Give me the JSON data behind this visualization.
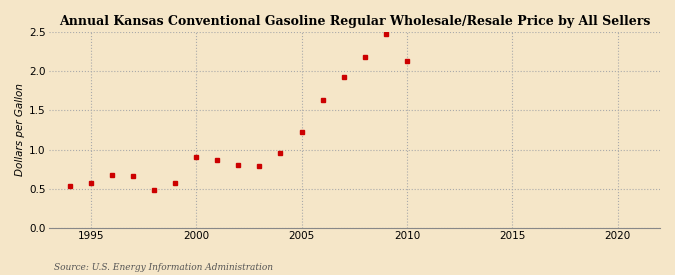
{
  "title": "Annual Kansas Conventional Gasoline Regular Wholesale/Resale Price by All Sellers",
  "ylabel": "Dollars per Gallon",
  "source": "Source: U.S. Energy Information Administration",
  "background_color": "#f5e6c8",
  "plot_bg_color": "#f5e6c8",
  "marker_color": "#cc0000",
  "marker": "s",
  "marker_size": 3.5,
  "xlim": [
    1993,
    2022
  ],
  "ylim": [
    0.0,
    2.5
  ],
  "xticks": [
    1995,
    2000,
    2005,
    2010,
    2015,
    2020
  ],
  "yticks": [
    0.0,
    0.5,
    1.0,
    1.5,
    2.0,
    2.5
  ],
  "years": [
    1994,
    1995,
    1996,
    1997,
    1998,
    1999,
    2000,
    2001,
    2002,
    2003,
    2004,
    2005,
    2006,
    2007,
    2008,
    2009,
    2010
  ],
  "values": [
    0.54,
    0.57,
    0.67,
    0.66,
    0.48,
    0.57,
    0.91,
    0.87,
    0.8,
    0.79,
    0.96,
    1.22,
    1.63,
    1.92,
    2.18,
    2.47,
    2.13
  ],
  "grid_color": "#aaaaaa",
  "spine_color": "#888888",
  "tick_label_size": 7.5,
  "ylabel_size": 7.5,
  "title_size": 9,
  "source_size": 6.5
}
